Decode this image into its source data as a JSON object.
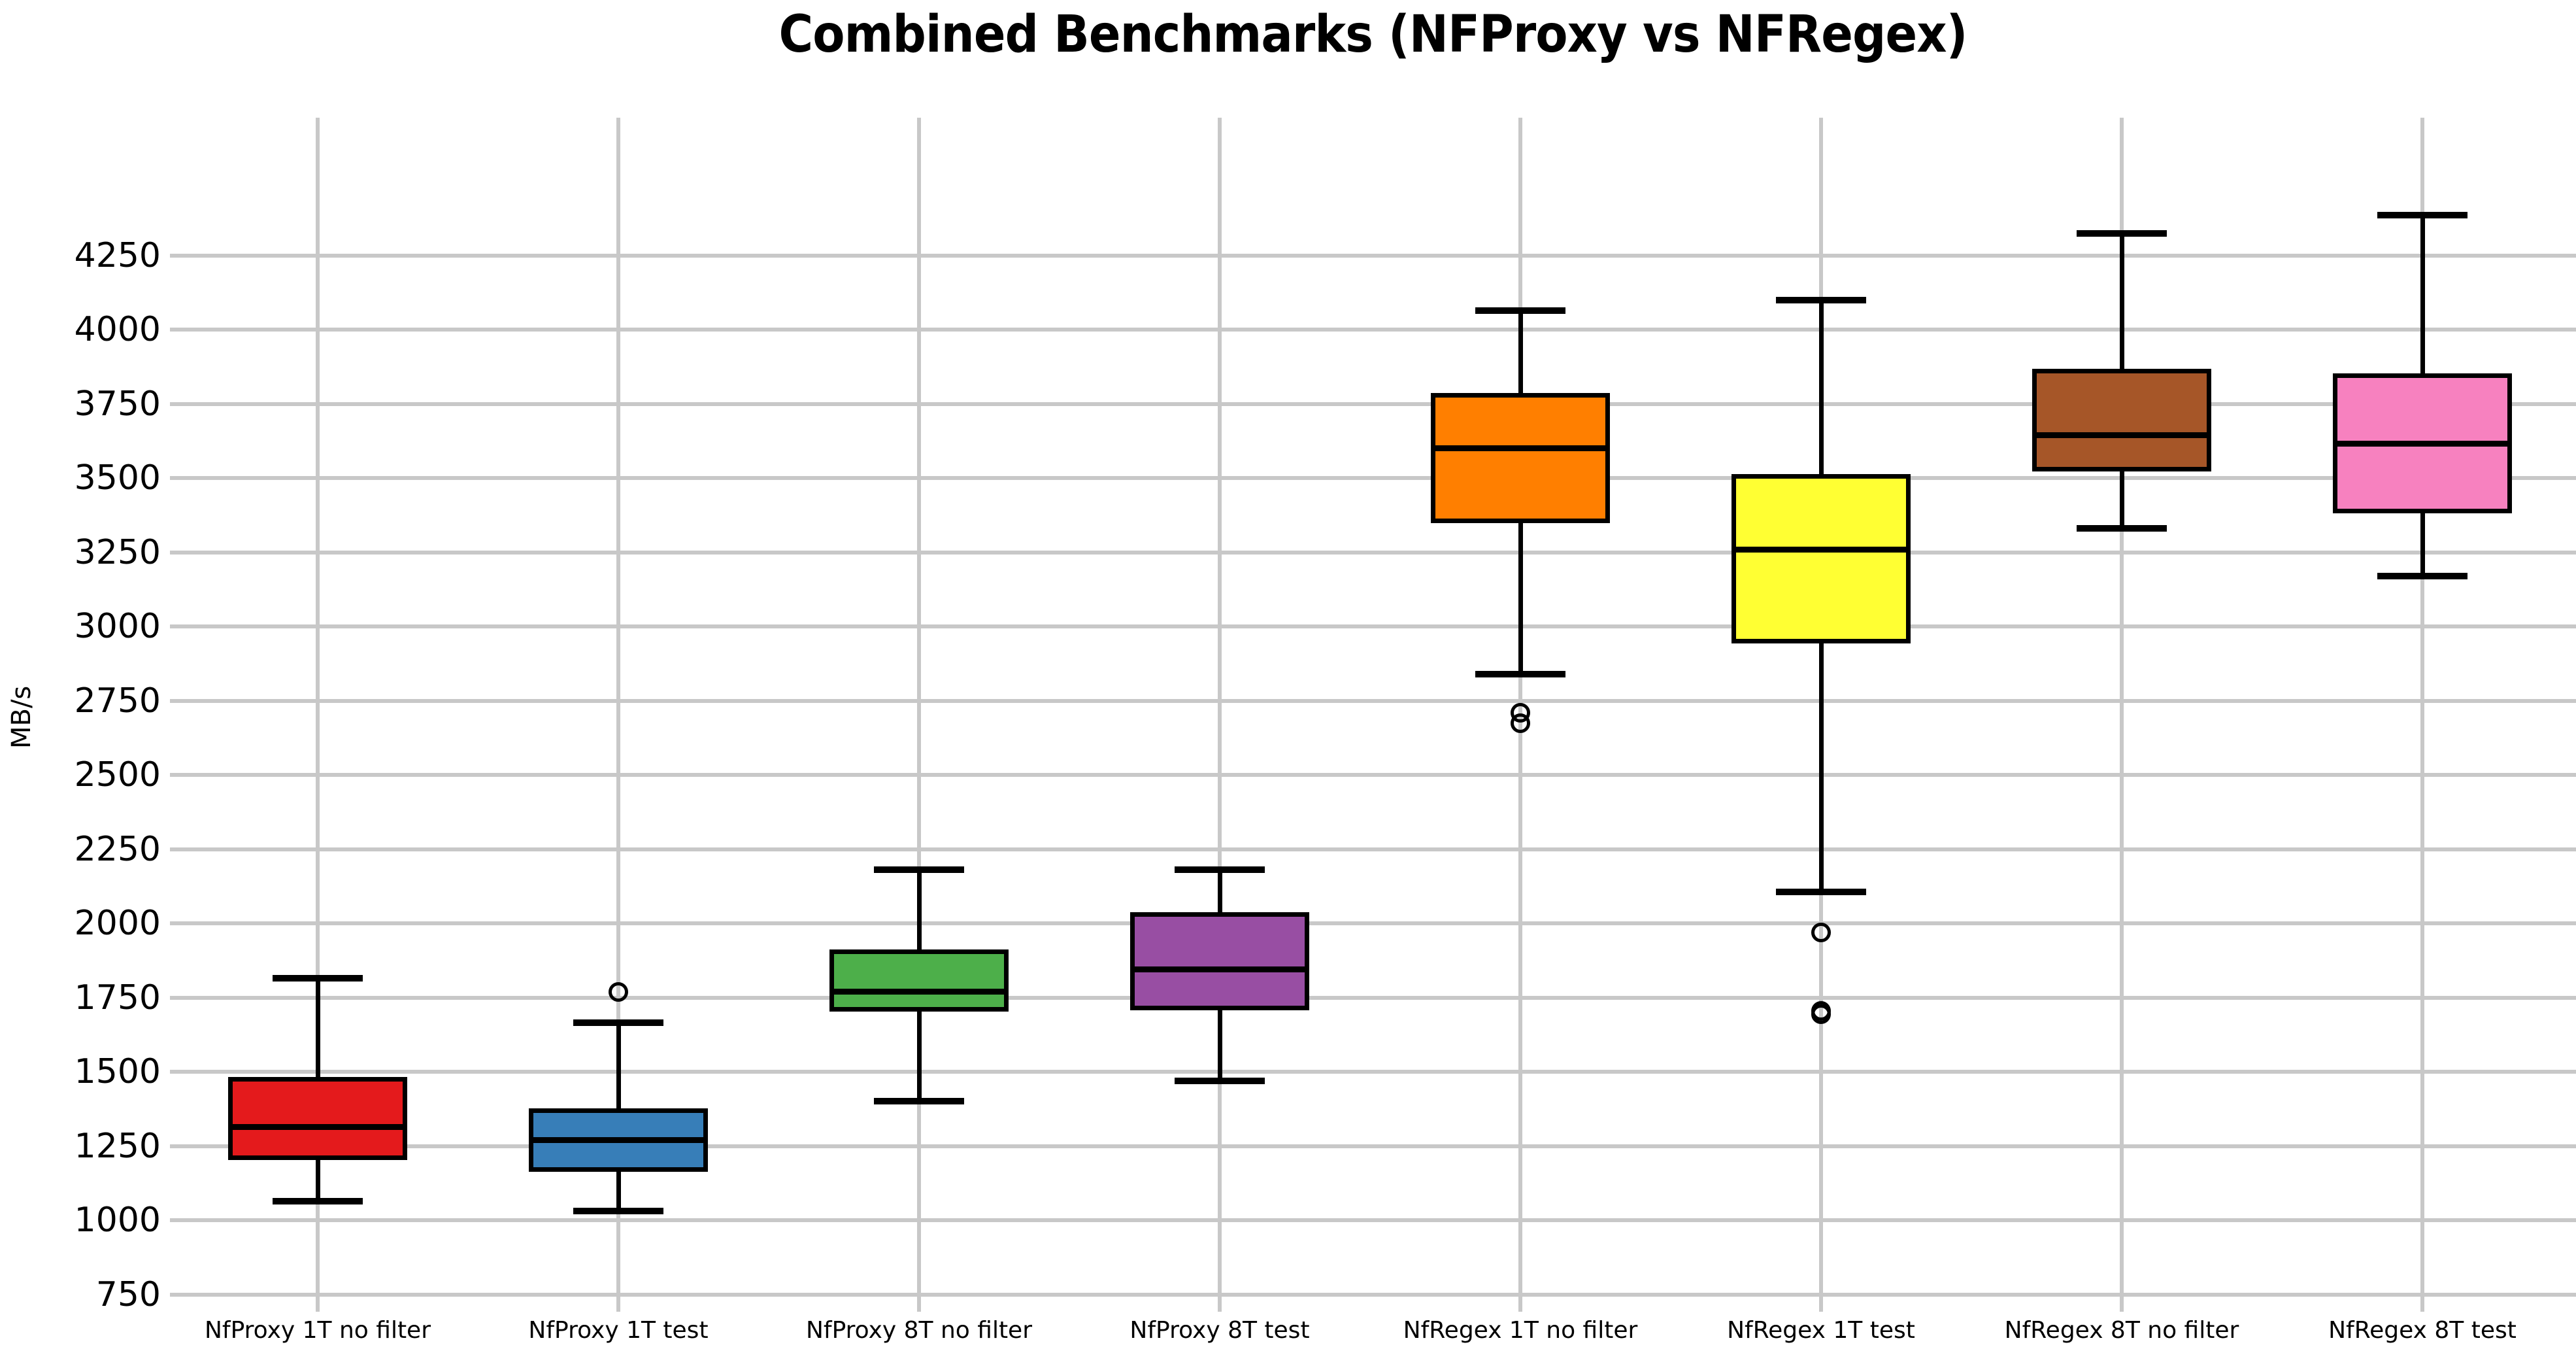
{
  "chart_data": {
    "type": "boxplot",
    "title": "Combined Benchmarks (NFProxy vs NFRegex)",
    "ylabel": "MB/s",
    "xlabel": "",
    "grid": true,
    "legend": false,
    "background_color": "#ffffff",
    "grid_color": "#c8c8c8",
    "box_edge_color": "#000000",
    "ylim": [
      727,
      4714
    ],
    "yticks": [
      750,
      1000,
      1250,
      1500,
      1750,
      2000,
      2250,
      2500,
      2750,
      3000,
      3250,
      3500,
      3750,
      4000,
      4250
    ],
    "categories": [
      "NfProxy 1T no filter",
      "NfProxy 1T test",
      "NfProxy 8T no filter",
      "NfProxy 8T test",
      "NfRegex 1T no filter",
      "NfRegex 1T test",
      "NfRegex 8T no filter",
      "NfRegex 8T test"
    ],
    "series": [
      {
        "name": "NfProxy 1T no filter",
        "color": "#e41a1c",
        "whisker_low": 1065,
        "q1": 1210,
        "median": 1315,
        "q3": 1475,
        "whisker_high": 1815,
        "outliers": []
      },
      {
        "name": "NfProxy 1T test",
        "color": "#377eb8",
        "whisker_low": 1030,
        "q1": 1170,
        "median": 1270,
        "q3": 1370,
        "whisker_high": 1665,
        "outliers": [
          1770
        ]
      },
      {
        "name": "NfProxy 8T no filter",
        "color": "#4daf4a",
        "whisker_low": 1400,
        "q1": 1710,
        "median": 1770,
        "q3": 1905,
        "whisker_high": 2180,
        "outliers": []
      },
      {
        "name": "NfProxy 8T test",
        "color": "#984ea3",
        "whisker_low": 1470,
        "q1": 1715,
        "median": 1845,
        "q3": 2030,
        "whisker_high": 2180,
        "outliers": []
      },
      {
        "name": "NfRegex 1T no filter",
        "color": "#ff7f00",
        "whisker_low": 2840,
        "q1": 3355,
        "median": 3600,
        "q3": 3780,
        "whisker_high": 4065,
        "outliers": [
          2710,
          2675
        ]
      },
      {
        "name": "NfRegex 1T test",
        "color": "#ffff33",
        "whisker_low": 2105,
        "q1": 2950,
        "median": 3260,
        "q3": 3505,
        "whisker_high": 4100,
        "outliers": [
          1970,
          1705,
          1695
        ]
      },
      {
        "name": "NfRegex 8T no filter",
        "color": "#a65628",
        "whisker_low": 3330,
        "q1": 3530,
        "median": 3645,
        "q3": 3860,
        "whisker_high": 4325,
        "outliers": []
      },
      {
        "name": "NfRegex 8T test",
        "color": "#f781bf",
        "whisker_low": 3170,
        "q1": 3390,
        "median": 3615,
        "q3": 3845,
        "whisker_high": 4385,
        "outliers": []
      }
    ]
  }
}
